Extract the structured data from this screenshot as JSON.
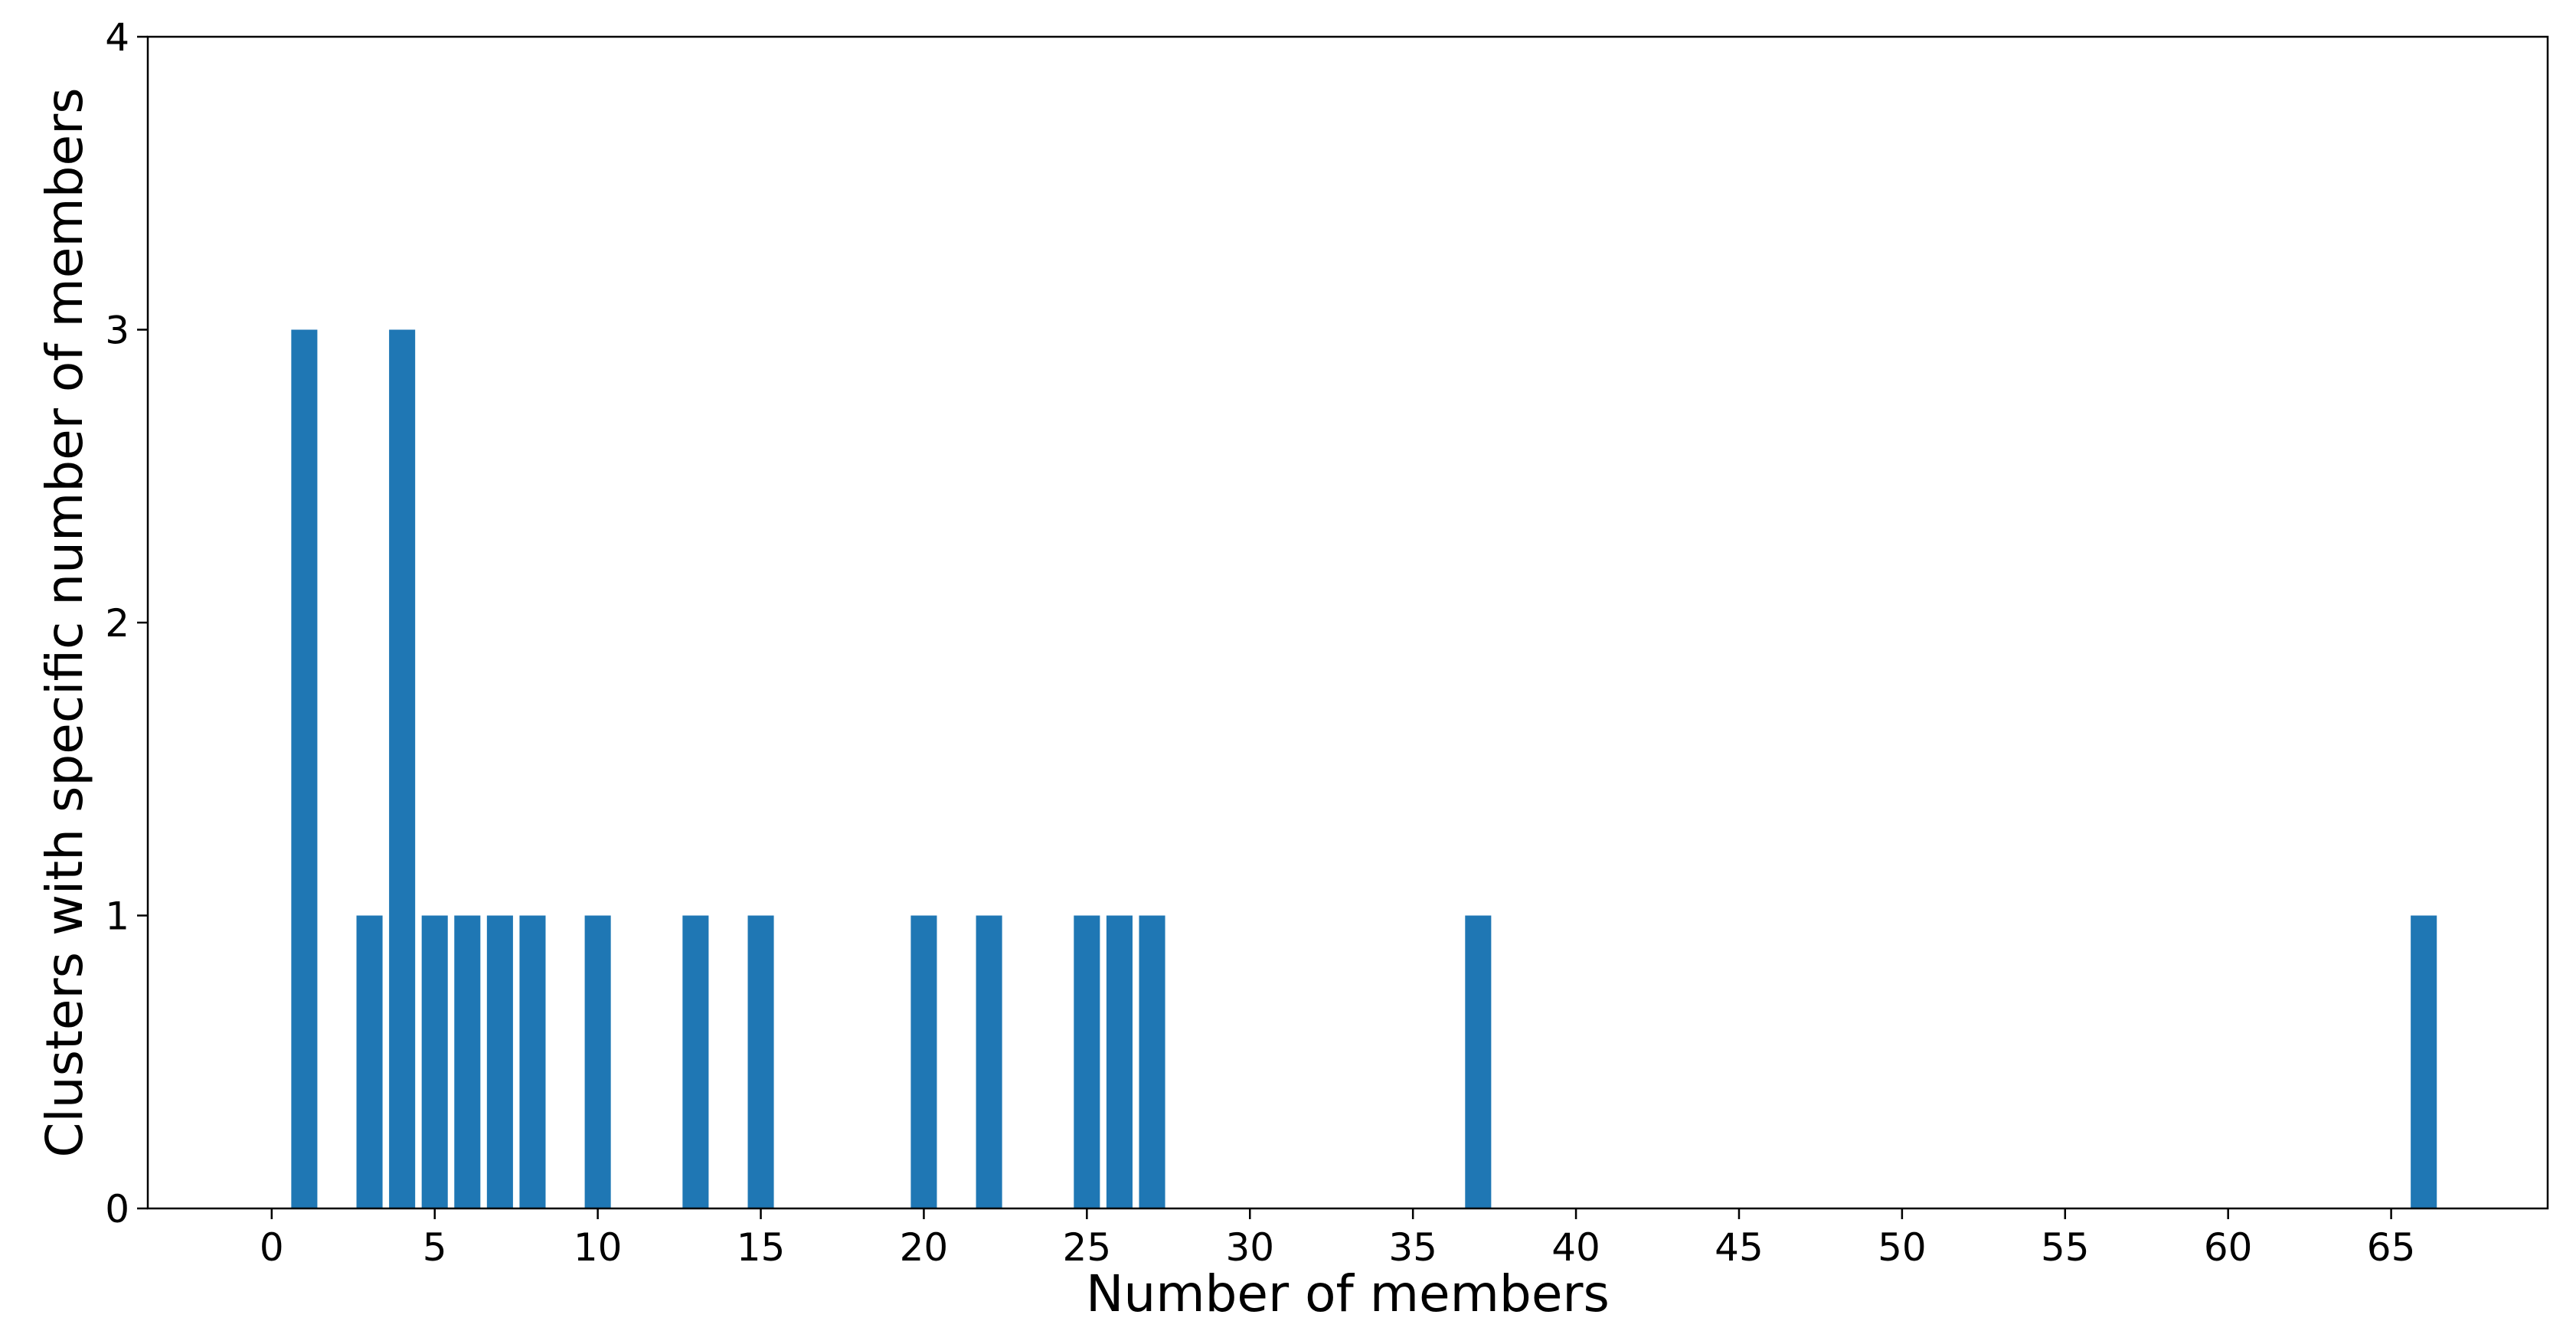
{
  "chart_data": {
    "type": "bar",
    "xlabel": "Number of members",
    "ylabel": "Clusters with specific number of members",
    "xlim": [
      -3.8,
      69.8
    ],
    "ylim": [
      0,
      4
    ],
    "xticks": [
      0,
      5,
      10,
      15,
      20,
      25,
      30,
      35,
      40,
      45,
      50,
      55,
      60,
      65
    ],
    "yticks": [
      0,
      1,
      2,
      3,
      4
    ],
    "bar_color": "#1f77b4",
    "bar_width": 0.8,
    "grid": false,
    "x": [
      1,
      3,
      4,
      5,
      6,
      7,
      8,
      10,
      13,
      15,
      20,
      22,
      25,
      26,
      27,
      37,
      66
    ],
    "values": [
      3,
      1,
      3,
      1,
      1,
      1,
      1,
      1,
      1,
      1,
      1,
      1,
      1,
      1,
      1,
      1,
      1
    ]
  }
}
